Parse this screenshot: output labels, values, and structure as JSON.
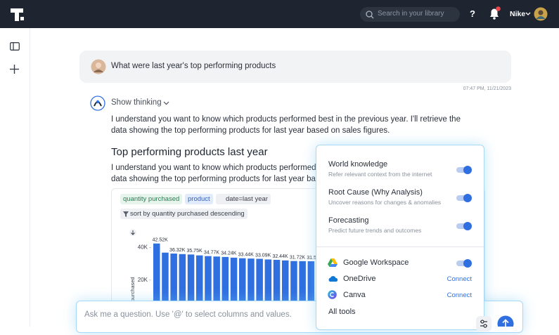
{
  "header": {
    "search_placeholder": "Search in your library",
    "help": "?",
    "user": "Nike"
  },
  "conversation": {
    "question": "What were last year's top performing products",
    "timestamp": "07:47 PM, 11/21/2023",
    "thinking_label": "Show thinking",
    "intro_lines": [
      "I understand you want to know which products performed best in the previous year. I'll retrieve the",
      "data showing the top performing products for last year based on sales figures."
    ],
    "heading": "Top performing products last year",
    "body_lines": [
      "I understand you want to know which products performed best in the previous year. I'll retrieve the",
      "data showing the top performing products for last year based on sales figures."
    ],
    "chips": [
      "quantity purchased",
      "product",
      "date=last year",
      "sort by quantity purchased descending"
    ],
    "chart": {
      "type": "bar",
      "y_label": "Total quantity purchased",
      "color": "#2f6fe0",
      "values": [
        42520,
        36900,
        36320,
        36000,
        35750,
        35200,
        34770,
        34500,
        34240,
        33800,
        33440,
        33250,
        33090,
        32700,
        32440,
        32100,
        31720,
        31650,
        31580
      ],
      "value_labels": [
        "42.52K",
        null,
        "36.32K",
        null,
        "35.75K",
        null,
        "34.77K",
        null,
        "34.24K",
        null,
        "33.44K",
        null,
        "33.09K",
        null,
        "32.44K",
        null,
        "31.72K",
        null,
        "31.58K"
      ],
      "ylim": [
        0,
        45000
      ],
      "yticks": [
        {
          "value": 20000,
          "label": "20K"
        },
        {
          "value": 40000,
          "label": "40K"
        }
      ]
    }
  },
  "tools_menu": {
    "options": [
      {
        "title": "World knowledge",
        "description": "Refer relevant context from the internet",
        "enabled": true
      },
      {
        "title": "Root Cause (Why Analysis)",
        "description": "Uncover reasons for changes & anomalies",
        "enabled": true
      },
      {
        "title": "Forecasting",
        "description": "Predict future trends and outcomes",
        "enabled": true
      }
    ],
    "integrations": [
      {
        "name": "Google Workspace",
        "enabled": true
      },
      {
        "name": "OneDrive",
        "action": "Connect"
      },
      {
        "name": "Canva",
        "action": "Connect"
      }
    ],
    "all_tools": "All tools"
  },
  "input": {
    "placeholder": "Ask me a question. Use '@' to select columns and values."
  }
}
